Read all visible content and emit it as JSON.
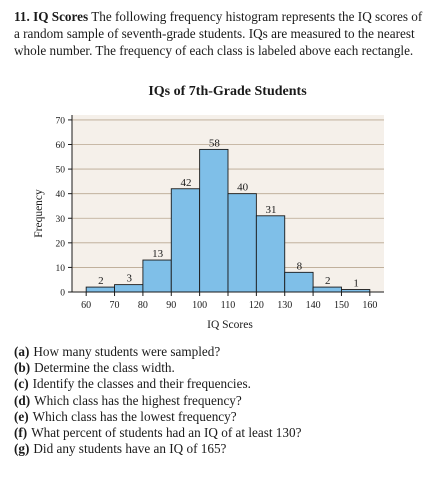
{
  "problem": {
    "number": "11.",
    "title": "IQ Scores",
    "text": "The following frequency histogram represents the IQ scores of a random sample of seventh-grade students. IQs are measured to the nearest whole number. The frequency of each class is labeled above each rectangle."
  },
  "chart_data": {
    "type": "bar",
    "title": "IQs of 7th-Grade Students",
    "xlabel": "IQ Scores",
    "ylabel": "Frequency",
    "x_ticks": [
      60,
      70,
      80,
      90,
      100,
      110,
      120,
      130,
      140,
      150,
      160
    ],
    "y_ticks": [
      0,
      10,
      20,
      30,
      40,
      50,
      60,
      70
    ],
    "xlim": [
      55,
      165
    ],
    "ylim": [
      0,
      72
    ],
    "grid": true,
    "bar_color": "#7fbfe8",
    "bars": [
      {
        "start": 60,
        "end": 70,
        "value": 2
      },
      {
        "start": 70,
        "end": 80,
        "value": 3
      },
      {
        "start": 80,
        "end": 90,
        "value": 13
      },
      {
        "start": 90,
        "end": 100,
        "value": 42
      },
      {
        "start": 100,
        "end": 110,
        "value": 58
      },
      {
        "start": 110,
        "end": 120,
        "value": 40
      },
      {
        "start": 120,
        "end": 130,
        "value": 31
      },
      {
        "start": 130,
        "end": 140,
        "value": 8
      },
      {
        "start": 140,
        "end": 150,
        "value": 2
      },
      {
        "start": 150,
        "end": 160,
        "value": 1
      }
    ]
  },
  "questions": [
    {
      "label": "(a)",
      "text": "How many students were sampled?"
    },
    {
      "label": "(b)",
      "text": "Determine the class width."
    },
    {
      "label": "(c)",
      "text": "Identify the classes and their frequencies."
    },
    {
      "label": "(d)",
      "text": "Which class has the highest frequency?"
    },
    {
      "label": "(e)",
      "text": "Which class has the lowest frequency?"
    },
    {
      "label": "(f)",
      "text": "What percent of students had an IQ of at least 130?"
    },
    {
      "label": "(g)",
      "text": "Did any students have an IQ of 165?"
    }
  ]
}
